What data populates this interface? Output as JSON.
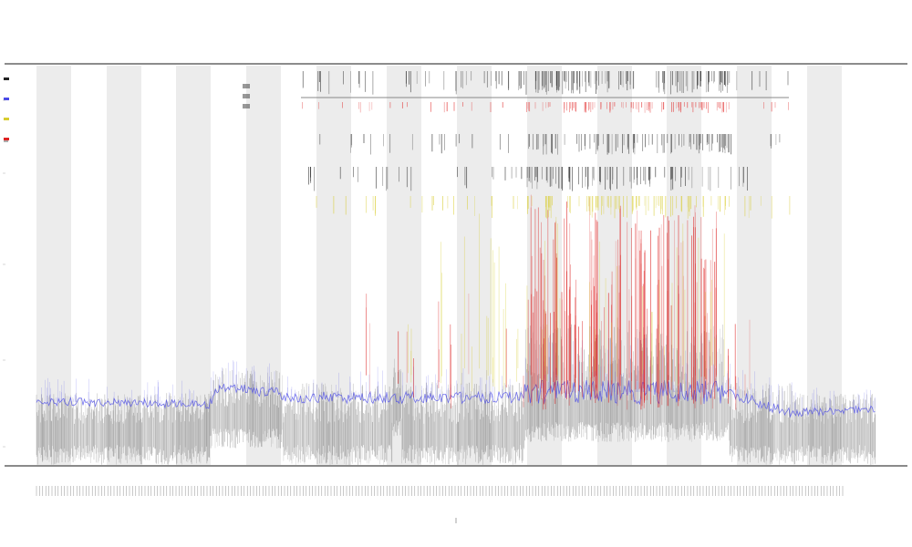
{
  "chart_data": {
    "type": "line",
    "title": "",
    "subtitles": [
      "",
      ""
    ],
    "xlabel": "",
    "ylabel": "",
    "legend": {
      "placement": "top-left",
      "entries": [
        "",
        "",
        "",
        ""
      ]
    },
    "grid": false,
    "alternating_bands": true,
    "series": [
      {
        "key": "gray",
        "color": "#555555"
      },
      {
        "key": "blue",
        "color": "#4a4ae8"
      },
      {
        "key": "red",
        "color": "#dd2222"
      },
      {
        "key": "yellow",
        "color": "#d8cc30"
      }
    ],
    "top_tracks": [
      {
        "key": "track-1",
        "color": "#222222"
      },
      {
        "key": "track-2",
        "color": "#e23030"
      },
      {
        "key": "track-3",
        "color": "#222222"
      },
      {
        "key": "track-4",
        "color": "#222222"
      },
      {
        "key": "track-5",
        "color": "#d8cc30"
      }
    ],
    "band_color": "#ececec",
    "axis_color": "#333333"
  }
}
